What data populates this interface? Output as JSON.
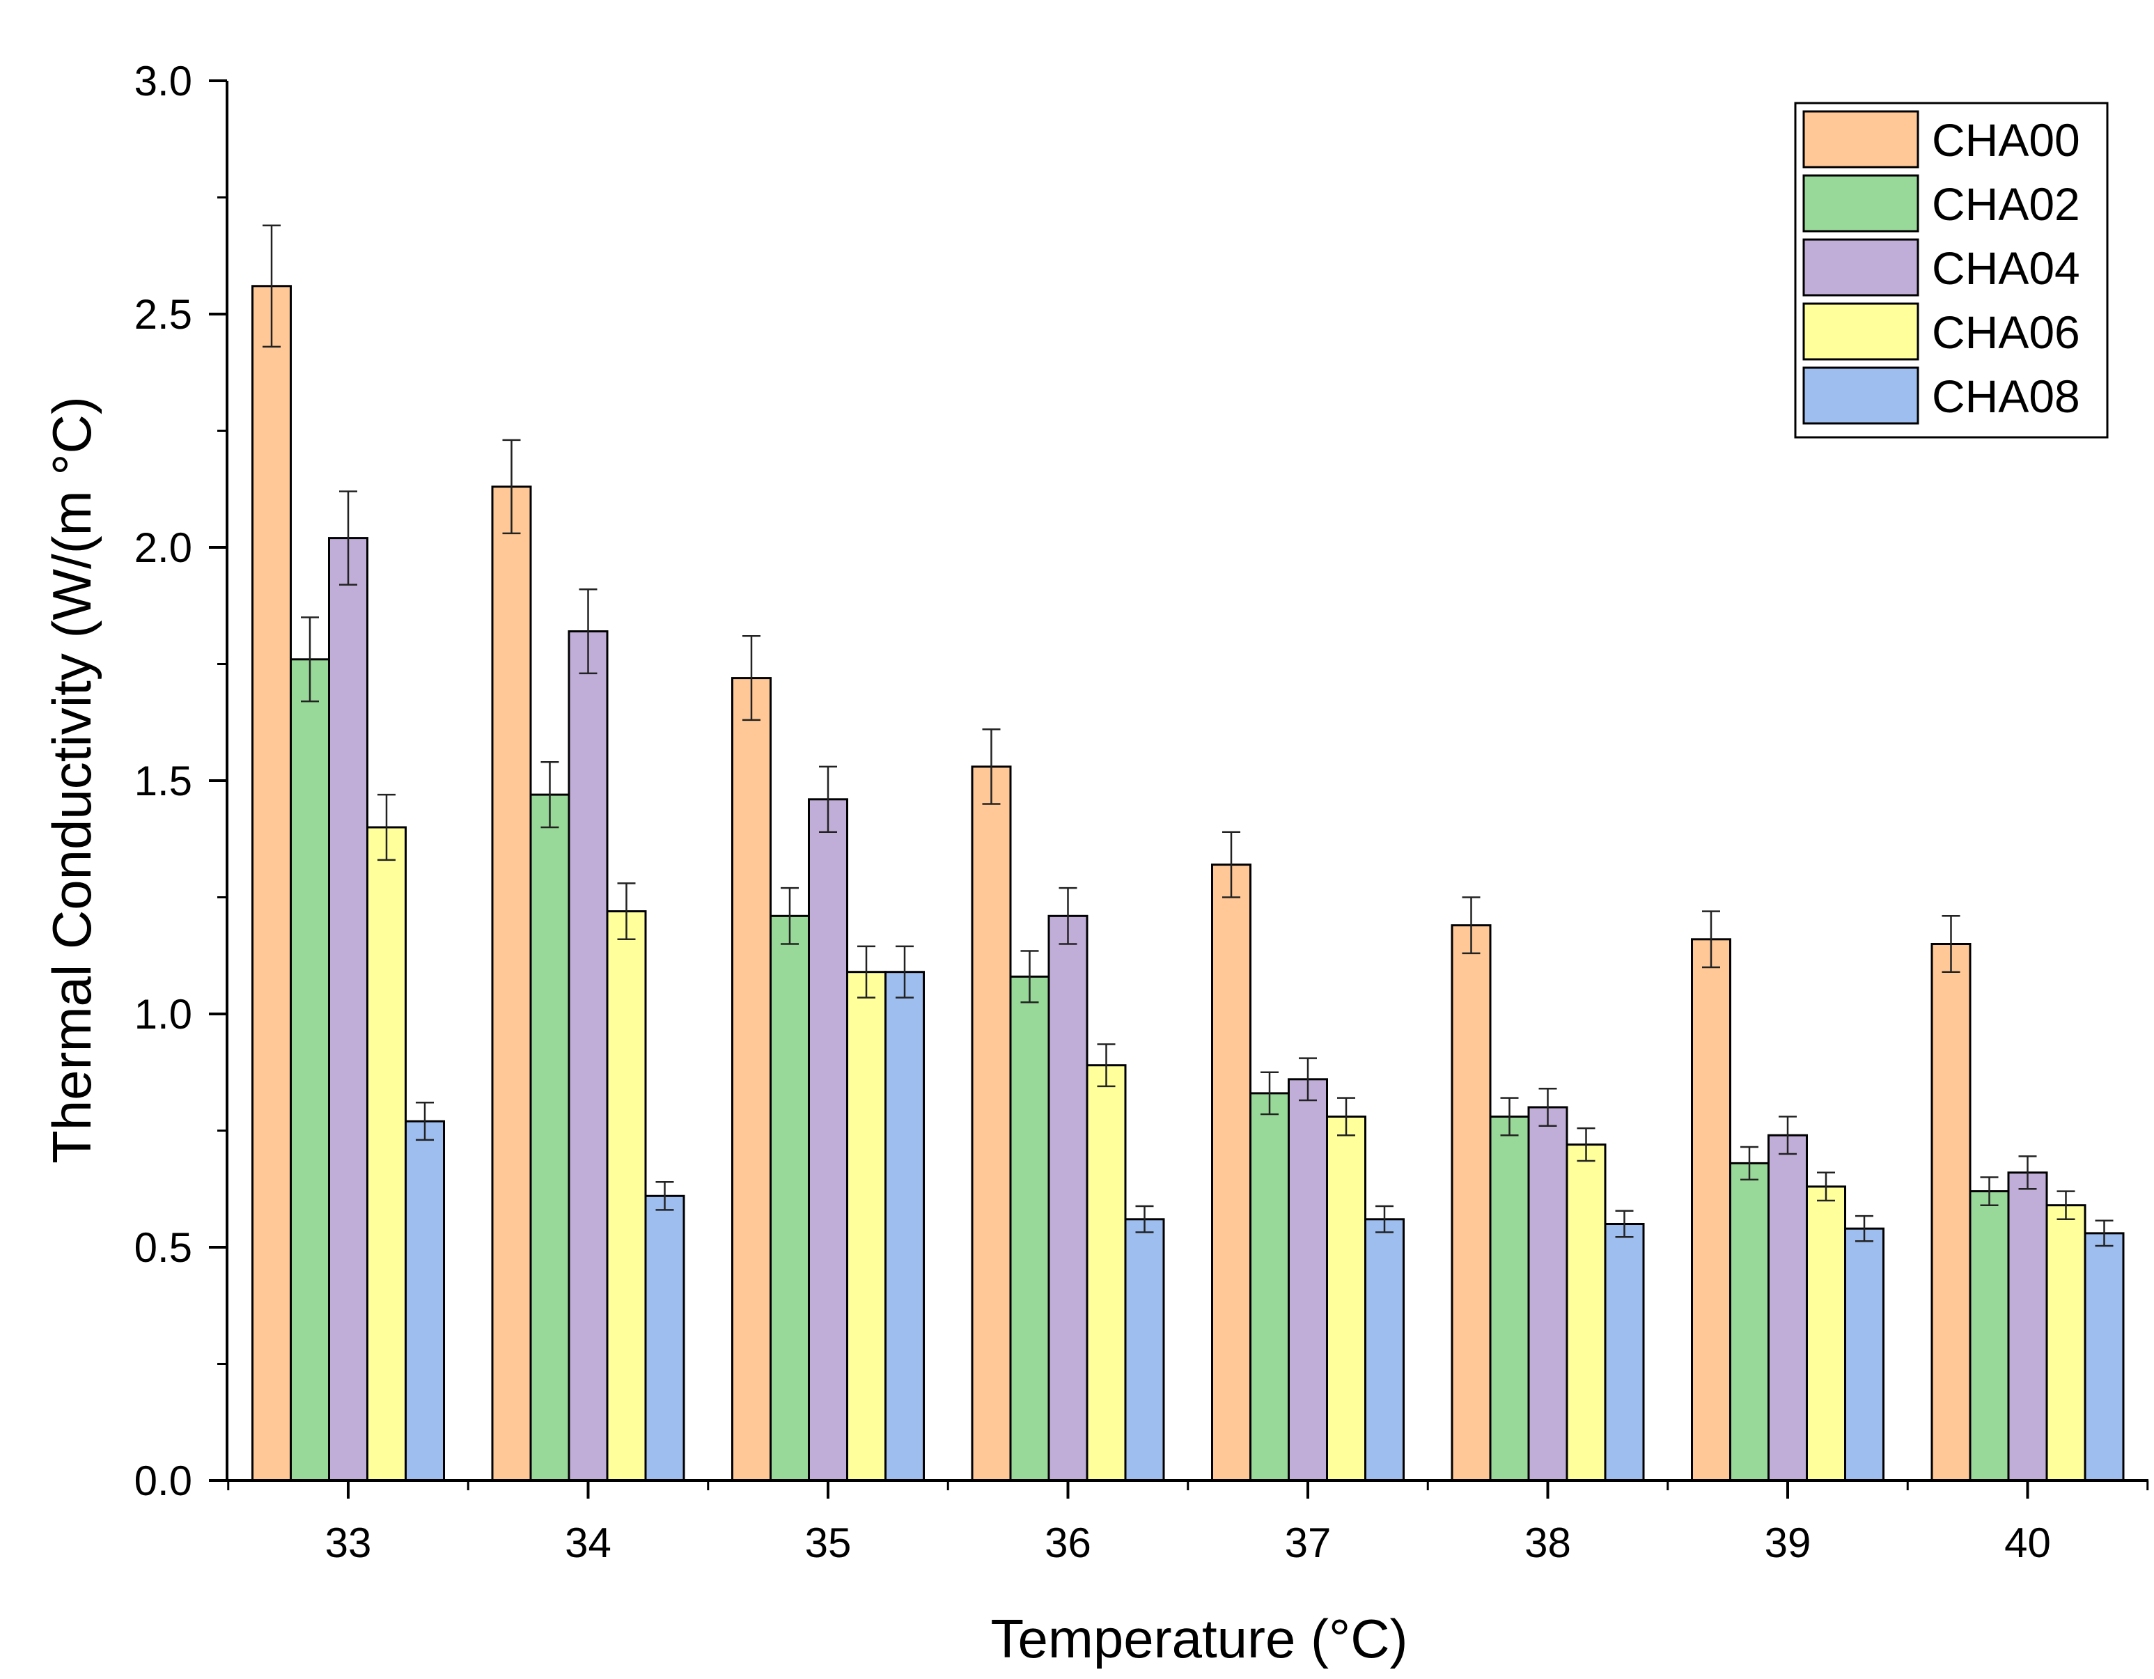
{
  "chart_data": {
    "type": "bar",
    "title": "",
    "xlabel": "Temperature (°C)",
    "ylabel": "Thermal Conductivity (W/(m °C)",
    "ylim": [
      0,
      3.0
    ],
    "yticks": [
      "0.0",
      "0.5",
      "1.0",
      "1.5",
      "2.0",
      "2.5",
      "3.0"
    ],
    "categories": [
      "33",
      "34",
      "35",
      "36",
      "37",
      "38",
      "39",
      "40"
    ],
    "grid": false,
    "legend_position": "top-right",
    "series": [
      {
        "name": "CHA00",
        "color": "#FFC896",
        "values": [
          2.56,
          2.13,
          1.72,
          1.53,
          1.32,
          1.19,
          1.16,
          1.15
        ],
        "errors": [
          0.13,
          0.1,
          0.09,
          0.08,
          0.07,
          0.06,
          0.06,
          0.06
        ]
      },
      {
        "name": "CHA02",
        "color": "#98D898",
        "values": [
          1.76,
          1.47,
          1.21,
          1.08,
          0.83,
          0.78,
          0.68,
          0.62
        ],
        "errors": [
          0.09,
          0.07,
          0.06,
          0.055,
          0.045,
          0.04,
          0.035,
          0.03
        ]
      },
      {
        "name": "CHA04",
        "color": "#C0AED8",
        "values": [
          2.02,
          1.82,
          1.46,
          1.21,
          0.86,
          0.8,
          0.74,
          0.66
        ],
        "errors": [
          0.1,
          0.09,
          0.07,
          0.06,
          0.045,
          0.04,
          0.04,
          0.035
        ]
      },
      {
        "name": "CHA06",
        "color": "#FFFF9C",
        "values": [
          1.4,
          1.22,
          1.09,
          0.89,
          0.78,
          0.72,
          0.63,
          0.59
        ],
        "errors": [
          0.07,
          0.06,
          0.055,
          0.045,
          0.04,
          0.035,
          0.03,
          0.03
        ]
      },
      {
        "name": "CHA08",
        "color": "#9EBEF0",
        "values": [
          0.77,
          0.61,
          1.09,
          0.56,
          0.56,
          0.55,
          0.54,
          0.53
        ],
        "errors": [
          0.04,
          0.03,
          0.055,
          0.028,
          0.028,
          0.028,
          0.027,
          0.027
        ]
      }
    ]
  }
}
